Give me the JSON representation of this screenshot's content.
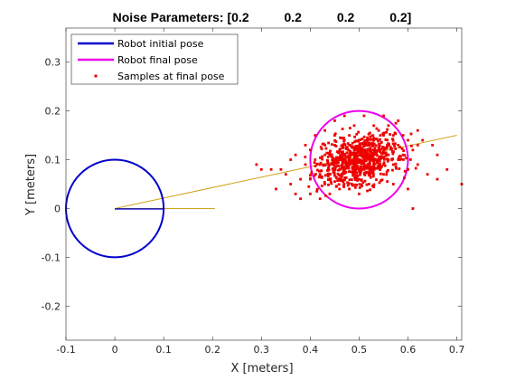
{
  "chart_data": {
    "type": "scatter",
    "title": "Noise Parameters: [0.2          0.2          0.2          0.2]",
    "xlabel": "X [meters]",
    "ylabel": "Y [meters]",
    "xlim": [
      -0.1,
      0.71
    ],
    "ylim": [
      -0.27,
      0.37
    ],
    "xticks": [
      -0.1,
      0,
      0.1,
      0.2,
      0.3,
      0.4,
      0.5,
      0.6,
      0.7
    ],
    "xtick_labels": [
      "-0.1",
      "0",
      "0.1",
      "0.2",
      "0.3",
      "0.4",
      "0.5",
      "0.6",
      "0.7"
    ],
    "yticks": [
      -0.2,
      -0.1,
      0,
      0.1,
      0.2,
      0.3
    ],
    "ytick_labels": [
      "-0.2",
      "-0.1",
      "0",
      "0.1",
      "0.2",
      "0.3"
    ],
    "grid": false,
    "legend": {
      "placement": "top-left"
    },
    "series": [
      {
        "name": "Robot initial pose",
        "kind": "circle",
        "center": [
          0,
          0
        ],
        "radius": 0.1,
        "heading_end": [
          0.1,
          0
        ],
        "color": "#0000cc"
      },
      {
        "name": "Robot final pose",
        "kind": "circle",
        "center": [
          0.5,
          0.1
        ],
        "radius": 0.1,
        "color": "#ee00ee"
      },
      {
        "name": "Samples at final pose",
        "kind": "scatter",
        "color": "#ee0000",
        "approx_center": [
          0.5,
          0.1
        ],
        "approx_x_range": [
          0.3,
          0.71
        ],
        "approx_y_range": [
          -0.01,
          0.21
        ],
        "points": [
          [
            0.5,
            0.1
          ],
          [
            0.48,
            0.09
          ],
          [
            0.52,
            0.11
          ],
          [
            0.46,
            0.08
          ],
          [
            0.54,
            0.12
          ],
          [
            0.44,
            0.09
          ],
          [
            0.56,
            0.1
          ],
          [
            0.42,
            0.07
          ],
          [
            0.58,
            0.13
          ],
          [
            0.4,
            0.06
          ],
          [
            0.6,
            0.14
          ],
          [
            0.38,
            0.06
          ],
          [
            0.49,
            0.12
          ],
          [
            0.51,
            0.08
          ],
          [
            0.47,
            0.11
          ],
          [
            0.53,
            0.09
          ],
          [
            0.45,
            0.13
          ],
          [
            0.55,
            0.07
          ],
          [
            0.43,
            0.11
          ],
          [
            0.57,
            0.09
          ],
          [
            0.41,
            0.1
          ],
          [
            0.59,
            0.11
          ],
          [
            0.39,
            0.09
          ],
          [
            0.61,
            0.12
          ],
          [
            0.5,
            0.14
          ],
          [
            0.5,
            0.06
          ],
          [
            0.48,
            0.15
          ],
          [
            0.52,
            0.05
          ],
          [
            0.46,
            0.04
          ],
          [
            0.54,
            0.16
          ],
          [
            0.44,
            0.03
          ],
          [
            0.56,
            0.17
          ],
          [
            0.47,
            0.19
          ],
          [
            0.51,
            0.19
          ],
          [
            0.55,
            0.19
          ],
          [
            0.58,
            0.18
          ],
          [
            0.45,
            0.18
          ],
          [
            0.49,
            0.17
          ],
          [
            0.53,
            0.17
          ],
          [
            0.62,
            0.16
          ],
          [
            0.63,
            0.14
          ],
          [
            0.36,
            0.05
          ],
          [
            0.35,
            0.07
          ],
          [
            0.37,
            0.03
          ],
          [
            0.34,
            0.08
          ],
          [
            0.32,
            0.08
          ],
          [
            0.3,
            0.08
          ],
          [
            0.29,
            0.09
          ],
          [
            0.33,
            0.04
          ],
          [
            0.38,
            0.02
          ],
          [
            0.4,
            0.03
          ],
          [
            0.42,
            0.02
          ],
          [
            0.6,
            0.08
          ],
          [
            0.62,
            0.09
          ],
          [
            0.64,
            0.07
          ],
          [
            0.66,
            0.06
          ],
          [
            0.68,
            0.08
          ],
          [
            0.71,
            0.05
          ],
          [
            0.66,
            0.11
          ],
          [
            0.65,
            0.13
          ],
          [
            0.6,
            0.04
          ],
          [
            0.57,
            0.05
          ],
          [
            0.61,
            0.0
          ],
          [
            0.5,
            0.03
          ],
          [
            0.46,
            0.06
          ],
          [
            0.43,
            0.05
          ],
          [
            0.48,
            0.04
          ],
          [
            0.39,
            0.13
          ],
          [
            0.41,
            0.15
          ],
          [
            0.43,
            0.16
          ],
          [
            0.4,
            0.12
          ],
          [
            0.37,
            0.11
          ],
          [
            0.36,
            0.1
          ],
          [
            0.52,
            0.13
          ],
          [
            0.49,
            0.1
          ],
          [
            0.47,
            0.1
          ],
          [
            0.51,
            0.11
          ],
          [
            0.53,
            0.1
          ],
          [
            0.46,
            0.12
          ],
          [
            0.54,
            0.1
          ],
          [
            0.48,
            0.13
          ],
          [
            0.52,
            0.07
          ],
          [
            0.44,
            0.11
          ],
          [
            0.56,
            0.13
          ],
          [
            0.45,
            0.1
          ],
          [
            0.55,
            0.09
          ],
          [
            0.42,
            0.09
          ],
          [
            0.58,
            0.1
          ],
          [
            0.47,
            0.08
          ],
          [
            0.53,
            0.12
          ],
          [
            0.49,
            0.07
          ],
          [
            0.51,
            0.13
          ],
          [
            0.44,
            0.07
          ],
          [
            0.56,
            0.11
          ],
          [
            0.5,
            0.12
          ],
          [
            0.5,
            0.08
          ],
          [
            0.57,
            0.15
          ],
          [
            0.59,
            0.15
          ],
          [
            0.62,
            0.13
          ],
          [
            0.43,
            0.13
          ],
          [
            0.45,
            0.15
          ],
          [
            0.47,
            0.14
          ],
          [
            0.53,
            0.14
          ],
          [
            0.55,
            0.15
          ]
        ]
      }
    ],
    "heading_line": {
      "from": [
        0,
        0
      ],
      "to": [
        0.7,
        0.15
      ],
      "color": "#cc9900"
    }
  }
}
